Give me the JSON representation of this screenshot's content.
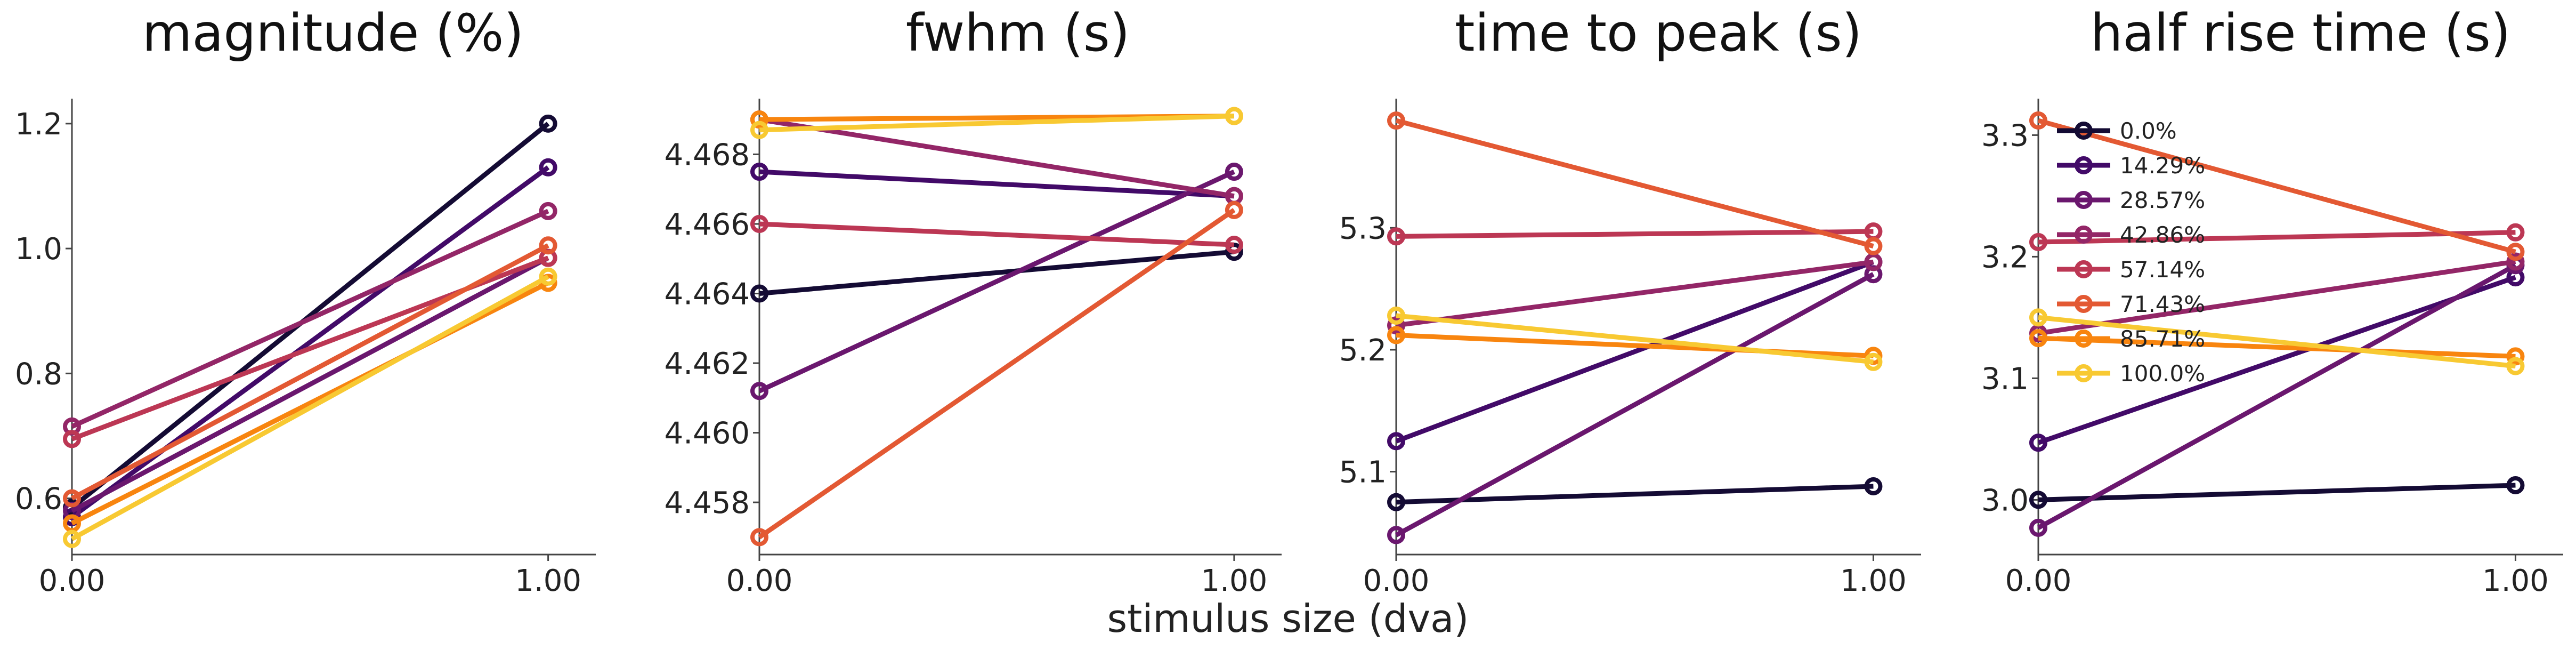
{
  "figure": {
    "shared_xlabel": "stimulus size (dva)"
  },
  "chart_data": [
    {
      "type": "line",
      "title": "magnitude (%)",
      "x": [
        0.0,
        1.0
      ],
      "x_ticks": [
        "0.00",
        "1.00"
      ],
      "xlim": [
        0.0,
        1.1
      ],
      "ylim": [
        0.51,
        1.24
      ],
      "y_ticks": [
        "0.6",
        "0.8",
        "1.0",
        "1.2"
      ],
      "series": [
        {
          "name": "0.0%",
          "color": "#140b34",
          "values": [
            0.585,
            1.2
          ]
        },
        {
          "name": "14.29%",
          "color": "#420a68",
          "values": [
            0.57,
            1.13
          ]
        },
        {
          "name": "28.57%",
          "color": "#6a176e",
          "values": [
            0.58,
            0.985
          ]
        },
        {
          "name": "42.86%",
          "color": "#932667",
          "values": [
            0.715,
            1.06
          ]
        },
        {
          "name": "57.14%",
          "color": "#bc3754",
          "values": [
            0.695,
            0.985
          ]
        },
        {
          "name": "71.43%",
          "color": "#e35933",
          "values": [
            0.6,
            1.005
          ]
        },
        {
          "name": "85.71%",
          "color": "#f8850f",
          "values": [
            0.56,
            0.945
          ]
        },
        {
          "name": "100.0%",
          "color": "#f8c932",
          "values": [
            0.535,
            0.955
          ]
        }
      ]
    },
    {
      "type": "line",
      "title": "fwhm (s)",
      "x": [
        0.0,
        1.0
      ],
      "x_ticks": [
        "0.00",
        "1.00"
      ],
      "xlim": [
        0.0,
        1.1
      ],
      "ylim": [
        4.4565,
        4.4696
      ],
      "y_ticks": [
        "4.458",
        "4.460",
        "4.462",
        "4.464",
        "4.466",
        "4.468"
      ],
      "series": [
        {
          "name": "0.0%",
          "color": "#140b34",
          "values": [
            4.464,
            4.4652
          ]
        },
        {
          "name": "14.29%",
          "color": "#420a68",
          "values": [
            4.4675,
            4.4668
          ]
        },
        {
          "name": "28.57%",
          "color": "#6a176e",
          "values": [
            4.4612,
            4.4675
          ]
        },
        {
          "name": "42.86%",
          "color": "#932667",
          "values": [
            4.469,
            4.4668
          ]
        },
        {
          "name": "57.14%",
          "color": "#bc3754",
          "values": [
            4.466,
            4.4654
          ]
        },
        {
          "name": "71.43%",
          "color": "#e35933",
          "values": [
            4.457,
            4.4664
          ]
        },
        {
          "name": "85.71%",
          "color": "#f8850f",
          "values": [
            4.469,
            4.4691
          ]
        },
        {
          "name": "100.0%",
          "color": "#f8c932",
          "values": [
            4.4687,
            4.4691
          ]
        }
      ]
    },
    {
      "type": "line",
      "title": "time to peak (s)",
      "x": [
        0.0,
        1.0
      ],
      "x_ticks": [
        "0.00",
        "1.00"
      ],
      "xlim": [
        0.0,
        1.1
      ],
      "ylim": [
        5.032,
        5.406
      ],
      "y_ticks": [
        "5.1",
        "5.2",
        "5.3"
      ],
      "series": [
        {
          "name": "0.0%",
          "color": "#140b34",
          "values": [
            5.075,
            5.088
          ]
        },
        {
          "name": "14.29%",
          "color": "#420a68",
          "values": [
            5.125,
            5.272
          ]
        },
        {
          "name": "28.57%",
          "color": "#6a176e",
          "values": [
            5.048,
            5.262
          ]
        },
        {
          "name": "42.86%",
          "color": "#932667",
          "values": [
            5.22,
            5.272
          ]
        },
        {
          "name": "57.14%",
          "color": "#bc3754",
          "values": [
            5.293,
            5.297
          ]
        },
        {
          "name": "71.43%",
          "color": "#e35933",
          "values": [
            5.388,
            5.285
          ]
        },
        {
          "name": "85.71%",
          "color": "#f8850f",
          "values": [
            5.212,
            5.195
          ]
        },
        {
          "name": "100.0%",
          "color": "#f8c932",
          "values": [
            5.228,
            5.19
          ]
        }
      ]
    },
    {
      "type": "line",
      "title": "half rise time (s)",
      "x": [
        0.0,
        1.0
      ],
      "x_ticks": [
        "0.00",
        "1.00"
      ],
      "xlim": [
        0.0,
        1.1
      ],
      "ylim": [
        2.955,
        3.33
      ],
      "y_ticks": [
        "3.0",
        "3.1",
        "3.2",
        "3.3"
      ],
      "legend_position": "top-left",
      "series": [
        {
          "name": "0.0%",
          "color": "#140b34",
          "values": [
            3.0,
            3.012
          ]
        },
        {
          "name": "14.29%",
          "color": "#420a68",
          "values": [
            3.047,
            3.183
          ]
        },
        {
          "name": "28.57%",
          "color": "#6a176e",
          "values": [
            2.977,
            3.193
          ]
        },
        {
          "name": "42.86%",
          "color": "#932667",
          "values": [
            3.137,
            3.196
          ]
        },
        {
          "name": "57.14%",
          "color": "#bc3754",
          "values": [
            3.212,
            3.22
          ]
        },
        {
          "name": "71.43%",
          "color": "#e35933",
          "values": [
            3.312,
            3.204
          ]
        },
        {
          "name": "85.71%",
          "color": "#f8850f",
          "values": [
            3.133,
            3.118
          ]
        },
        {
          "name": "100.0%",
          "color": "#f8c932",
          "values": [
            3.15,
            3.11
          ]
        }
      ]
    }
  ]
}
